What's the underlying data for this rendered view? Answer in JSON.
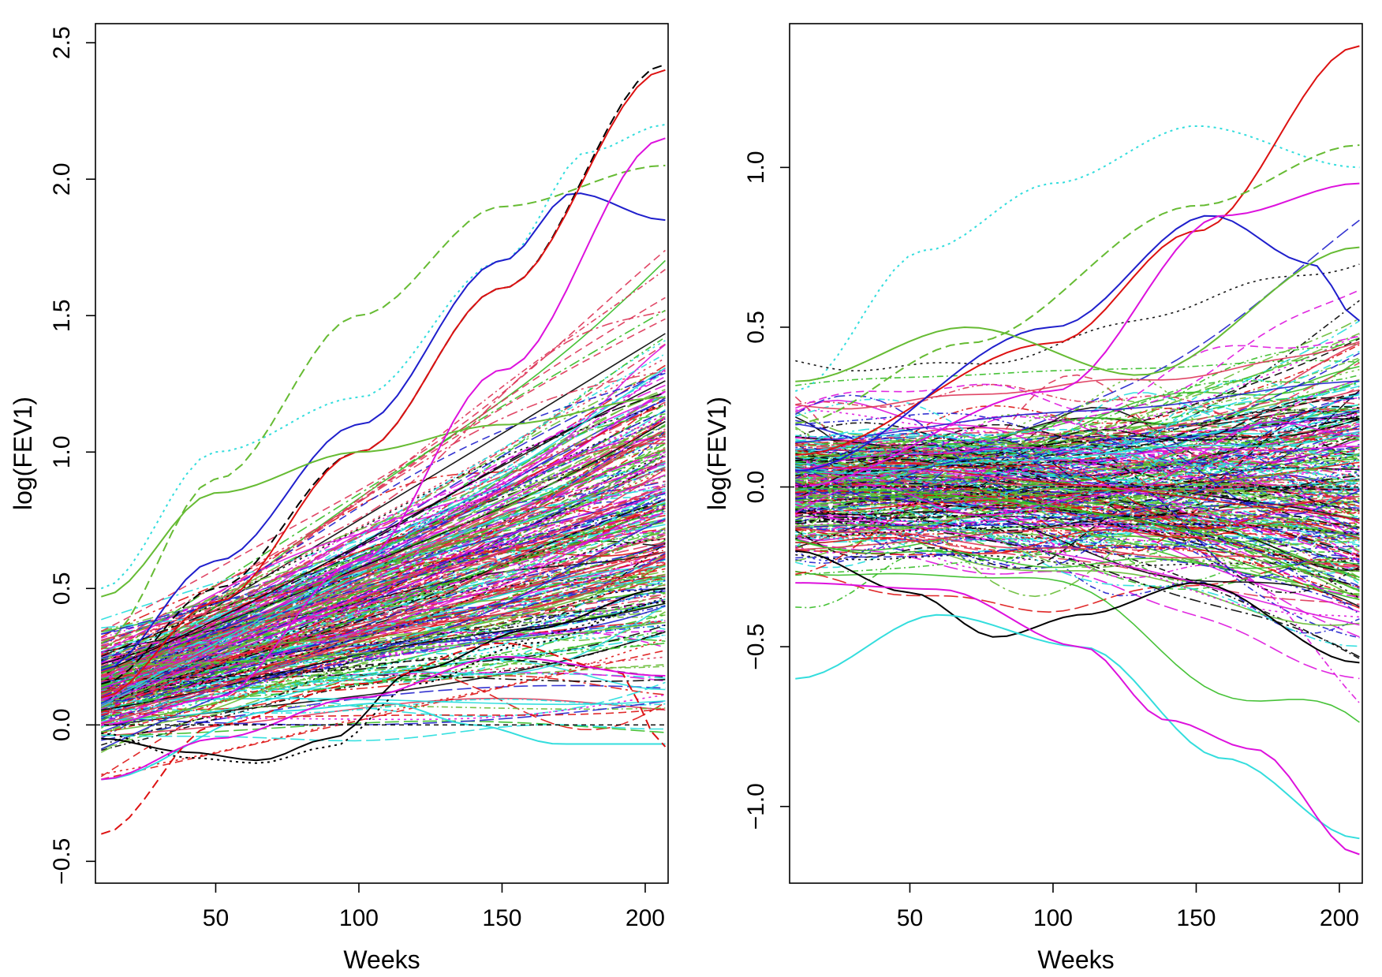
{
  "chart_data": [
    {
      "type": "line",
      "panel": "left",
      "title": "",
      "xlabel": "Weeks",
      "ylabel": "log(FEV1)",
      "xlim": [
        8,
        208
      ],
      "ylim": [
        -0.58,
        2.57
      ],
      "xticks": [
        50,
        100,
        150,
        200
      ],
      "xtick_labels": [
        "50",
        "100",
        "150",
        "200"
      ],
      "yticks": [
        -0.5,
        0.0,
        0.5,
        1.0,
        1.5,
        2.0,
        2.5
      ],
      "ytick_labels": [
        "−0.5",
        "0.0",
        "0.5",
        "1.0",
        "1.5",
        "2.0",
        "2.5"
      ],
      "reference_line": {
        "y": 0.0,
        "style": "dashed"
      },
      "x_range": [
        10,
        207
      ],
      "series_count": 300,
      "grid": false,
      "series": [
        {
          "name": "cyan dotted",
          "color": "#33dddd",
          "dash": "dot",
          "x": [
            10,
            50,
            100,
            150,
            180,
            207
          ],
          "y": [
            0.5,
            1.0,
            1.2,
            1.7,
            2.1,
            2.2
          ]
        },
        {
          "name": "green dashed",
          "color": "#66bb33",
          "dash": "dash",
          "x": [
            10,
            50,
            100,
            150,
            207
          ],
          "y": [
            0.3,
            0.9,
            1.5,
            1.9,
            2.05
          ]
        },
        {
          "name": "blue solid",
          "color": "#1f1fcc",
          "dash": "solid",
          "x": [
            10,
            50,
            100,
            150,
            175,
            207
          ],
          "y": [
            0.2,
            0.6,
            1.1,
            1.7,
            1.95,
            1.85
          ]
        },
        {
          "name": "black dashed",
          "color": "#000000",
          "dash": "dash",
          "x": [
            10,
            50,
            100,
            150,
            207
          ],
          "y": [
            0.15,
            0.5,
            1.0,
            1.6,
            2.42
          ]
        },
        {
          "name": "red solid",
          "color": "#dd1111",
          "dash": "solid",
          "x": [
            10,
            50,
            100,
            150,
            207
          ],
          "y": [
            0.1,
            0.45,
            1.0,
            1.6,
            2.4
          ]
        },
        {
          "name": "green solid",
          "color": "#66bb33",
          "dash": "solid",
          "x": [
            10,
            50,
            100,
            150,
            207
          ],
          "y": [
            0.47,
            0.85,
            1.0,
            1.1,
            1.2
          ]
        },
        {
          "name": "magenta solid",
          "color": "#dd11dd",
          "dash": "solid",
          "x": [
            10,
            50,
            100,
            150,
            207
          ],
          "y": [
            0.0,
            0.1,
            0.6,
            1.3,
            2.15
          ]
        },
        {
          "name": "black solid",
          "color": "#000000",
          "dash": "solid",
          "x": [
            10,
            40,
            65,
            90,
            120,
            160,
            207
          ],
          "y": [
            -0.05,
            -0.1,
            -0.13,
            -0.05,
            0.2,
            0.35,
            0.5
          ]
        },
        {
          "name": "black dotted",
          "color": "#000000",
          "dash": "dot",
          "x": [
            10,
            40,
            65,
            90,
            120,
            160,
            207
          ],
          "y": [
            -0.03,
            -0.12,
            -0.14,
            -0.08,
            0.15,
            0.3,
            0.45
          ]
        },
        {
          "name": "cyan solid",
          "color": "#33dddd",
          "dash": "solid",
          "x": [
            10,
            70,
            110,
            140,
            170,
            207
          ],
          "y": [
            -0.2,
            0.05,
            0.08,
            0.0,
            -0.07,
            -0.07
          ]
        },
        {
          "name": "red dashed",
          "color": "#dd1111",
          "dash": "dash",
          "x": [
            10,
            50,
            100,
            150,
            190,
            207
          ],
          "y": [
            -0.4,
            0.0,
            0.15,
            0.3,
            0.2,
            -0.08
          ]
        },
        {
          "name": "magenta solid low",
          "color": "#dd11dd",
          "dash": "solid",
          "x": [
            10,
            50,
            100,
            150,
            207
          ],
          "y": [
            -0.2,
            -0.05,
            0.1,
            0.25,
            0.18
          ]
        }
      ]
    },
    {
      "type": "line",
      "panel": "right",
      "title": "",
      "xlabel": "Weeks",
      "ylabel": "log(FEV1)",
      "xlim": [
        8,
        208
      ],
      "ylim": [
        -1.24,
        1.45
      ],
      "xticks": [
        50,
        100,
        150,
        200
      ],
      "xtick_labels": [
        "50",
        "100",
        "150",
        "200"
      ],
      "yticks": [
        -1.0,
        -0.5,
        0.0,
        0.5,
        1.0
      ],
      "ytick_labels": [
        "−1.0",
        "−0.5",
        "0.0",
        "0.5",
        "1.0"
      ],
      "reference_line": {
        "y": 0.0,
        "style": "dashed"
      },
      "x_range": [
        10,
        207
      ],
      "series_count": 300,
      "grid": false,
      "series": [
        {
          "name": "cyan dotted",
          "color": "#33dddd",
          "dash": "dot",
          "x": [
            10,
            55,
            100,
            150,
            207
          ],
          "y": [
            0.3,
            0.74,
            0.95,
            1.13,
            1.0
          ]
        },
        {
          "name": "red solid",
          "color": "#dd1111",
          "dash": "solid",
          "x": [
            10,
            100,
            150,
            207
          ],
          "y": [
            0.1,
            0.45,
            0.8,
            1.38
          ]
        },
        {
          "name": "blue solid",
          "color": "#1f1fcc",
          "dash": "solid",
          "x": [
            10,
            100,
            155,
            190,
            207
          ],
          "y": [
            0.05,
            0.5,
            0.85,
            0.7,
            0.52
          ]
        },
        {
          "name": "magenta solid",
          "color": "#dd11dd",
          "dash": "solid",
          "x": [
            10,
            100,
            160,
            207
          ],
          "y": [
            0.0,
            0.3,
            0.85,
            0.95
          ]
        },
        {
          "name": "green dashed",
          "color": "#66bb33",
          "dash": "dash",
          "x": [
            10,
            70,
            150,
            207
          ],
          "y": [
            0.2,
            0.45,
            0.88,
            1.07
          ]
        },
        {
          "name": "black solid",
          "color": "#000000",
          "dash": "solid",
          "x": [
            10,
            50,
            80,
            110,
            150,
            207
          ],
          "y": [
            -0.2,
            -0.33,
            -0.47,
            -0.4,
            -0.3,
            -0.55
          ]
        },
        {
          "name": "cyan solid",
          "color": "#33dddd",
          "dash": "solid",
          "x": [
            10,
            60,
            110,
            160,
            207
          ],
          "y": [
            -0.6,
            -0.4,
            -0.5,
            -0.85,
            -1.1
          ]
        },
        {
          "name": "magenta solid low",
          "color": "#dd11dd",
          "dash": "solid",
          "x": [
            10,
            60,
            110,
            140,
            170,
            207
          ],
          "y": [
            -0.3,
            -0.32,
            -0.5,
            -0.73,
            -0.82,
            -1.15
          ]
        },
        {
          "name": "green solid",
          "color": "#66bb33",
          "dash": "solid",
          "x": [
            10,
            70,
            130,
            207
          ],
          "y": [
            0.33,
            0.5,
            0.35,
            0.75
          ]
        }
      ]
    }
  ]
}
